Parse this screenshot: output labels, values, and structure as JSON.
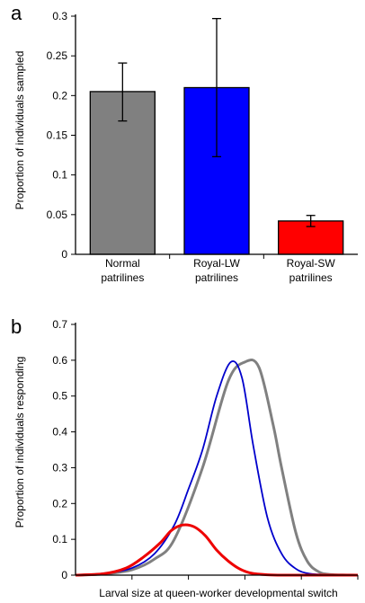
{
  "chart_data": [
    {
      "panel_label": "a",
      "type": "bar",
      "ylabel": "Proportion of individuals sampled",
      "ylim": [
        0,
        0.3
      ],
      "yticks": [
        "0",
        "0.05",
        "0.1",
        "0.15",
        "0.2",
        "0.25",
        "0.3"
      ],
      "categories": [
        {
          "line1": "Normal",
          "line2": "patrilines"
        },
        {
          "line1": "Royal-LW",
          "line2": "patrilines"
        },
        {
          "line1": "Royal-SW",
          "line2": "patrilines"
        }
      ],
      "values": [
        0.205,
        0.21,
        0.042
      ],
      "error_low": [
        0.168,
        0.123,
        0.035
      ],
      "error_high": [
        0.241,
        0.297,
        0.049
      ],
      "colors": [
        "#808080",
        "#0000ff",
        "#ff0000"
      ]
    },
    {
      "panel_label": "b",
      "type": "line",
      "ylabel": "Proportion of individuals responding",
      "xlabel": "Larval size at queen-worker developmental switch",
      "ylim": [
        0,
        0.7
      ],
      "yticks": [
        "0",
        "0.1",
        "0.2",
        "0.3",
        "0.4",
        "0.5",
        "0.6",
        "0.7"
      ],
      "xlim": [
        0,
        10
      ],
      "series": [
        {
          "color": "#808080",
          "x": [
            0,
            1,
            2,
            2.8,
            3.5,
            4.5,
            5.4,
            6,
            6.5,
            7.0,
            7.3,
            7.8,
            8.2,
            8.6,
            9.0,
            10
          ],
          "y": [
            0,
            0.003,
            0.015,
            0.045,
            0.1,
            0.3,
            0.54,
            0.595,
            0.58,
            0.42,
            0.3,
            0.12,
            0.04,
            0.01,
            0.002,
            0
          ]
        },
        {
          "color": "#0000cc",
          "x": [
            0,
            1,
            2,
            2.8,
            3.5,
            4.0,
            4.5,
            5.0,
            5.5,
            5.9,
            6.3,
            6.8,
            7.3,
            7.8,
            8.3,
            9,
            10
          ],
          "y": [
            0,
            0.005,
            0.02,
            0.06,
            0.14,
            0.24,
            0.35,
            0.5,
            0.595,
            0.55,
            0.36,
            0.16,
            0.06,
            0.018,
            0.004,
            0.001,
            0
          ]
        },
        {
          "color": "#ee0000",
          "x": [
            0,
            1,
            1.8,
            2.4,
            3.0,
            3.4,
            3.8,
            4.2,
            4.6,
            5.0,
            5.4,
            5.8,
            6.2,
            6.8,
            7.5,
            8.5,
            10
          ],
          "y": [
            0,
            0.004,
            0.02,
            0.05,
            0.09,
            0.125,
            0.14,
            0.135,
            0.11,
            0.07,
            0.04,
            0.018,
            0.006,
            0.001,
            0,
            0,
            0
          ]
        }
      ]
    }
  ]
}
